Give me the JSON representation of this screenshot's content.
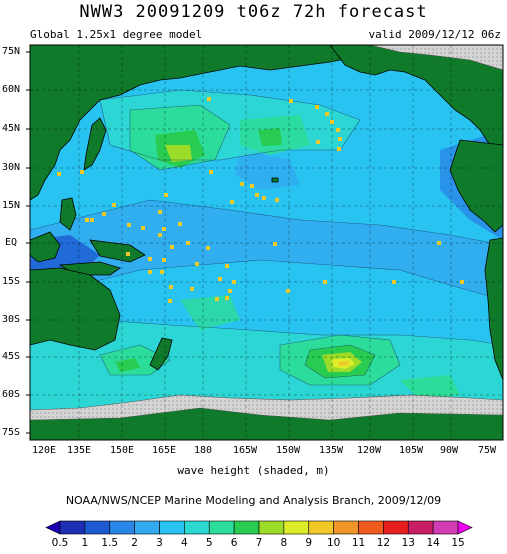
{
  "title": "NWW3 20091209 t06z   72h forecast",
  "subtitle_left": "Global 1.25x1 degree model",
  "subtitle_right": "valid 2009/12/12 06z",
  "x_axis_label": "wave height (shaded, m)",
  "credit": "NOAA/NWS/NCEP Marine Modeling and Analysis Branch, 2009/12/09",
  "lat_labels": [
    "75N",
    "60N",
    "45N",
    "30N",
    "15N",
    "EQ",
    "15S",
    "30S",
    "45S",
    "60S",
    "75S"
  ],
  "lon_labels": [
    "120E",
    "135E",
    "150E",
    "165E",
    "180",
    "165W",
    "150W",
    "135W",
    "120W",
    "105W",
    "90W",
    "75W"
  ],
  "colorbar": {
    "ticks": [
      "0.5",
      "1",
      "1.5",
      "2",
      "3",
      "4",
      "5",
      "6",
      "7",
      "8",
      "9",
      "10",
      "11",
      "12",
      "13",
      "14",
      "15"
    ],
    "colors": [
      "#1e2fb4",
      "#1e5ad2",
      "#2887e6",
      "#32aaf0",
      "#28c3f0",
      "#2cd8d0",
      "#2cdc9a",
      "#28cc50",
      "#9adc28",
      "#dcec28",
      "#f0c828",
      "#f09628",
      "#f05a1e",
      "#e61e1e",
      "#c81e64",
      "#d23cb4",
      "#f064f0"
    ],
    "under_color": "#1e00b4",
    "over_color": "#f000f0"
  },
  "legend_colors": {
    "land": "#0f7a2a",
    "ice": "#cfcfcf",
    "buoy": "#f0c828",
    "ocean_base": "#28c3f0"
  }
}
